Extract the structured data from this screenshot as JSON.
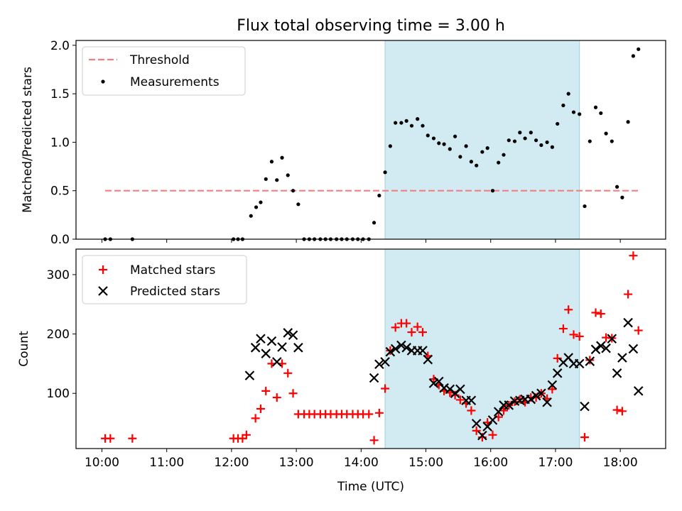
{
  "chart_data": [
    {
      "type": "scatter",
      "title": "Flux total observing time = 3.00 h",
      "xlabel": "",
      "ylabel": "Matched/Predicted stars",
      "xlim": [
        9.6,
        18.7
      ],
      "ylim": [
        0,
        2.05
      ],
      "yticks": [
        "0.0",
        "0.5",
        "1.0",
        "1.5",
        "2.0"
      ],
      "highlight_span": {
        "x0": 14.37,
        "x1": 17.37,
        "color": "#add8e6"
      },
      "legend": {
        "position": "upper-left",
        "threshold_label": "Threshold",
        "measurements_label": "Measurements"
      },
      "threshold": {
        "name": "Threshold",
        "y": 0.5,
        "x_range": [
          10.05,
          18.3
        ],
        "color": "#f08080",
        "style": "dashed"
      },
      "series": [
        {
          "name": "Measurements",
          "color": "#000000",
          "marker": "dot",
          "points": [
            [
              10.05,
              0
            ],
            [
              10.13,
              0
            ],
            [
              10.47,
              0
            ],
            [
              12.03,
              0
            ],
            [
              12.1,
              0
            ],
            [
              12.17,
              0
            ],
            [
              12.3,
              0.24
            ],
            [
              12.38,
              0.33
            ],
            [
              12.45,
              0.38
            ],
            [
              12.53,
              0.62
            ],
            [
              12.62,
              0.8
            ],
            [
              12.7,
              0.61
            ],
            [
              12.78,
              0.84
            ],
            [
              12.87,
              0.66
            ],
            [
              12.95,
              0.5
            ],
            [
              13.03,
              0.36
            ],
            [
              13.12,
              0
            ],
            [
              13.2,
              0
            ],
            [
              13.28,
              0
            ],
            [
              13.37,
              0
            ],
            [
              13.45,
              0
            ],
            [
              13.53,
              0
            ],
            [
              13.62,
              0
            ],
            [
              13.7,
              0
            ],
            [
              13.78,
              0
            ],
            [
              13.87,
              0
            ],
            [
              13.95,
              0
            ],
            [
              14.03,
              0
            ],
            [
              14.12,
              0
            ],
            [
              14.2,
              0.17
            ],
            [
              14.28,
              0.45
            ],
            [
              14.37,
              0.69
            ],
            [
              14.45,
              0.96
            ],
            [
              14.53,
              1.2
            ],
            [
              14.62,
              1.2
            ],
            [
              14.7,
              1.22
            ],
            [
              14.78,
              1.17
            ],
            [
              14.87,
              1.24
            ],
            [
              14.95,
              1.17
            ],
            [
              15.03,
              1.07
            ],
            [
              15.12,
              1.04
            ],
            [
              15.2,
              0.99
            ],
            [
              15.28,
              0.98
            ],
            [
              15.37,
              0.93
            ],
            [
              15.45,
              1.06
            ],
            [
              15.53,
              0.85
            ],
            [
              15.62,
              0.96
            ],
            [
              15.7,
              0.8
            ],
            [
              15.78,
              0.76
            ],
            [
              15.87,
              0.9
            ],
            [
              15.95,
              0.94
            ],
            [
              16.03,
              0.5
            ],
            [
              16.12,
              0.79
            ],
            [
              16.2,
              0.87
            ],
            [
              16.28,
              1.02
            ],
            [
              16.37,
              1.01
            ],
            [
              16.45,
              1.1
            ],
            [
              16.53,
              1.04
            ],
            [
              16.62,
              1.1
            ],
            [
              16.7,
              1.02
            ],
            [
              16.78,
              0.97
            ],
            [
              16.87,
              1.0
            ],
            [
              16.95,
              0.95
            ],
            [
              17.03,
              1.19
            ],
            [
              17.12,
              1.38
            ],
            [
              17.2,
              1.5
            ],
            [
              17.28,
              1.31
            ],
            [
              17.37,
              1.29
            ],
            [
              17.45,
              0.34
            ],
            [
              17.53,
              1.01
            ],
            [
              17.62,
              1.36
            ],
            [
              17.7,
              1.3
            ],
            [
              17.78,
              1.09
            ],
            [
              17.87,
              1.01
            ],
            [
              17.95,
              0.54
            ],
            [
              18.03,
              0.43
            ],
            [
              18.12,
              1.21
            ],
            [
              18.2,
              1.89
            ],
            [
              18.28,
              1.96
            ]
          ]
        }
      ]
    },
    {
      "type": "scatter",
      "xlabel": "Time (UTC)",
      "ylabel": "Count",
      "xlim": [
        9.6,
        18.7
      ],
      "ylim": [
        7,
        343
      ],
      "xticks": [
        "10:00",
        "11:00",
        "12:00",
        "13:00",
        "14:00",
        "15:00",
        "16:00",
        "17:00",
        "18:00"
      ],
      "yticks": [
        "100",
        "200",
        "300"
      ],
      "highlight_span": {
        "x0": 14.37,
        "x1": 17.37,
        "color": "#add8e6"
      },
      "legend": {
        "position": "upper-left",
        "matched_label": "Matched stars",
        "predicted_label": "Predicted stars"
      },
      "series": [
        {
          "name": "Matched stars",
          "color": "#ff0000",
          "marker": "plus",
          "points": [
            [
              10.05,
              24
            ],
            [
              10.13,
              24
            ],
            [
              10.47,
              24
            ],
            [
              12.03,
              24
            ],
            [
              12.1,
              24
            ],
            [
              12.17,
              24
            ],
            [
              12.23,
              30
            ],
            [
              12.37,
              58
            ],
            [
              12.45,
              74
            ],
            [
              12.53,
              104
            ],
            [
              12.62,
              150
            ],
            [
              12.7,
              93
            ],
            [
              12.78,
              150
            ],
            [
              12.87,
              134
            ],
            [
              12.95,
              100
            ],
            [
              13.03,
              65
            ],
            [
              13.12,
              65
            ],
            [
              13.2,
              65
            ],
            [
              13.28,
              65
            ],
            [
              13.37,
              65
            ],
            [
              13.45,
              65
            ],
            [
              13.53,
              65
            ],
            [
              13.62,
              65
            ],
            [
              13.7,
              65
            ],
            [
              13.78,
              65
            ],
            [
              13.87,
              65
            ],
            [
              13.95,
              65
            ],
            [
              14.03,
              65
            ],
            [
              14.12,
              65
            ],
            [
              14.2,
              21
            ],
            [
              14.28,
              67
            ],
            [
              14.37,
              108
            ],
            [
              14.45,
              172
            ],
            [
              14.53,
              211
            ],
            [
              14.62,
              218
            ],
            [
              14.7,
              218
            ],
            [
              14.78,
              203
            ],
            [
              14.87,
              212
            ],
            [
              14.95,
              203
            ],
            [
              15.03,
              163
            ],
            [
              15.12,
              124
            ],
            [
              15.2,
              114
            ],
            [
              15.28,
              104
            ],
            [
              15.37,
              101
            ],
            [
              15.45,
              97
            ],
            [
              15.53,
              89
            ],
            [
              15.62,
              83
            ],
            [
              15.7,
              71
            ],
            [
              15.78,
              37
            ],
            [
              15.87,
              26
            ],
            [
              15.95,
              51
            ],
            [
              16.03,
              30
            ],
            [
              16.12,
              60
            ],
            [
              16.2,
              71
            ],
            [
              16.28,
              80
            ],
            [
              16.37,
              86
            ],
            [
              16.45,
              90
            ],
            [
              16.53,
              85
            ],
            [
              16.62,
              93
            ],
            [
              16.7,
              93
            ],
            [
              16.78,
              100
            ],
            [
              16.87,
              91
            ],
            [
              16.95,
              107
            ],
            [
              17.03,
              159
            ],
            [
              17.12,
              209
            ],
            [
              17.2,
              241
            ],
            [
              17.28,
              199
            ],
            [
              17.37,
              196
            ],
            [
              17.45,
              26
            ],
            [
              17.53,
              156
            ],
            [
              17.62,
              236
            ],
            [
              17.7,
              234
            ],
            [
              17.78,
              194
            ],
            [
              17.87,
              193
            ],
            [
              17.95,
              72
            ],
            [
              18.03,
              70
            ],
            [
              18.12,
              267
            ],
            [
              18.2,
              332
            ],
            [
              18.28,
              206
            ]
          ]
        },
        {
          "name": "Predicted stars",
          "color": "#000000",
          "marker": "x",
          "points": [
            [
              12.28,
              130
            ],
            [
              12.37,
              177
            ],
            [
              12.45,
              192
            ],
            [
              12.53,
              167
            ],
            [
              12.62,
              188
            ],
            [
              12.7,
              153
            ],
            [
              12.78,
              178
            ],
            [
              12.87,
              202
            ],
            [
              12.95,
              198
            ],
            [
              13.03,
              177
            ],
            [
              14.2,
              126
            ],
            [
              14.28,
              149
            ],
            [
              14.37,
              153
            ],
            [
              14.45,
              170
            ],
            [
              14.53,
              175
            ],
            [
              14.62,
              181
            ],
            [
              14.7,
              177
            ],
            [
              14.78,
              172
            ],
            [
              14.87,
              172
            ],
            [
              14.95,
              172
            ],
            [
              15.03,
              157
            ],
            [
              15.12,
              117
            ],
            [
              15.2,
              120
            ],
            [
              15.28,
              109
            ],
            [
              15.37,
              107
            ],
            [
              15.45,
              100
            ],
            [
              15.53,
              107
            ],
            [
              15.62,
              88
            ],
            [
              15.7,
              88
            ],
            [
              15.78,
              49
            ],
            [
              15.87,
              29
            ],
            [
              15.95,
              44
            ],
            [
              16.03,
              55
            ],
            [
              16.12,
              69
            ],
            [
              16.2,
              80
            ],
            [
              16.28,
              80
            ],
            [
              16.37,
              87
            ],
            [
              16.45,
              88
            ],
            [
              16.53,
              90
            ],
            [
              16.62,
              90
            ],
            [
              16.7,
              96
            ],
            [
              16.78,
              100
            ],
            [
              16.87,
              85
            ],
            [
              16.95,
              114
            ],
            [
              17.03,
              134
            ],
            [
              17.12,
              152
            ],
            [
              17.2,
              160
            ],
            [
              17.28,
              150
            ],
            [
              17.37,
              150
            ],
            [
              17.45,
              78
            ],
            [
              17.53,
              154
            ],
            [
              17.62,
              174
            ],
            [
              17.7,
              180
            ],
            [
              17.78,
              176
            ],
            [
              17.87,
              192
            ],
            [
              17.95,
              134
            ],
            [
              18.03,
              160
            ],
            [
              18.12,
              219
            ],
            [
              18.2,
              175
            ],
            [
              18.28,
              104
            ]
          ]
        }
      ]
    }
  ]
}
